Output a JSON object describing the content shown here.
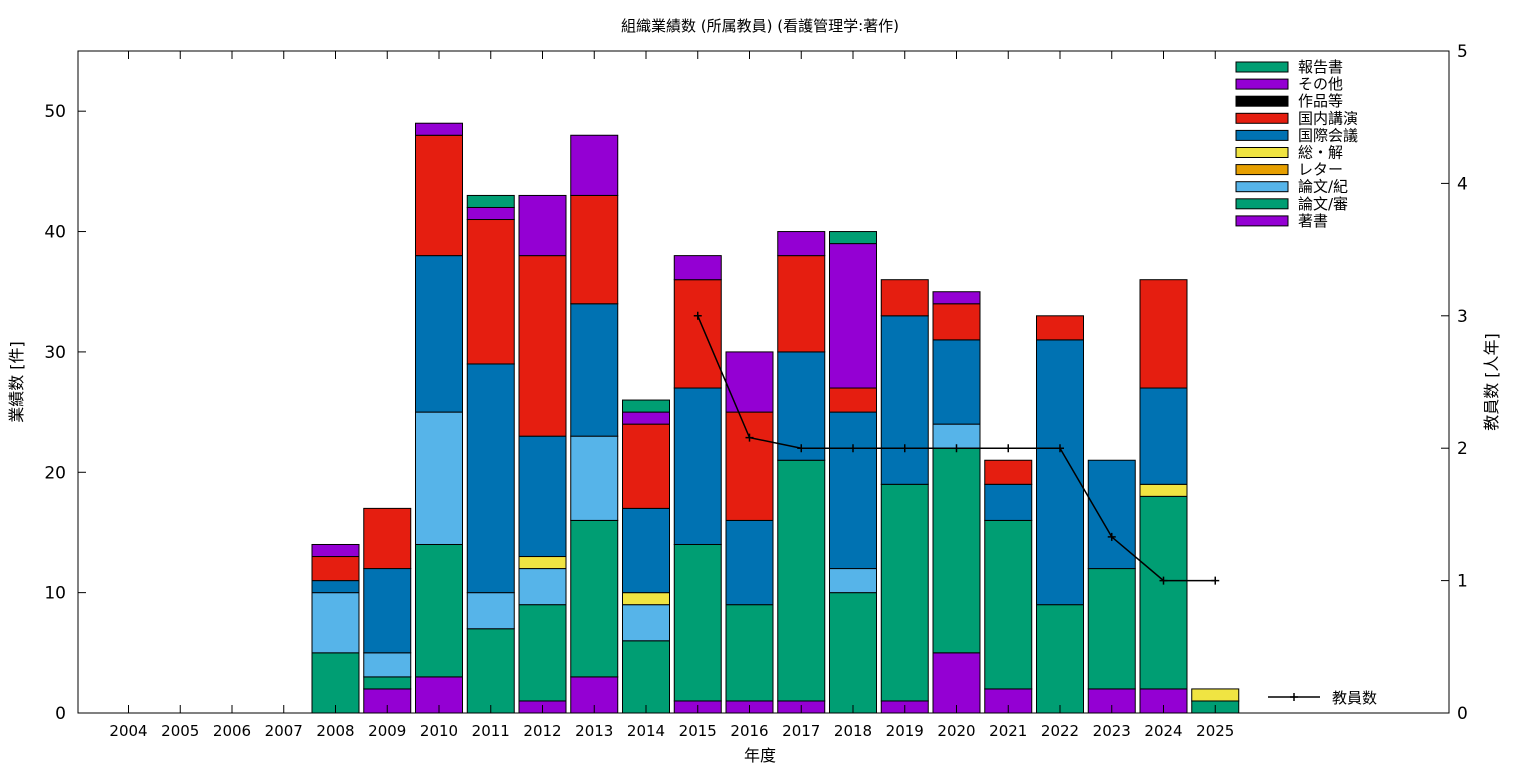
{
  "chart_data": {
    "type": "bar",
    "stacked": true,
    "title": "組織業績数 (所属教員) (看護管理学:著作)",
    "xlabel": "年度",
    "ylabel": "業績数 [件]",
    "y2label": "教員数 [人年]",
    "ylim": [
      0,
      55
    ],
    "y2lim": [
      0,
      5
    ],
    "yticks": [
      0,
      10,
      20,
      30,
      40,
      50
    ],
    "y2ticks": [
      0,
      1,
      2,
      3,
      4,
      5
    ],
    "grid": false,
    "legend_position": "top-right",
    "categories": [
      "2004",
      "2005",
      "2006",
      "2007",
      "2008",
      "2009",
      "2010",
      "2011",
      "2012",
      "2013",
      "2014",
      "2015",
      "2016",
      "2017",
      "2018",
      "2019",
      "2020",
      "2021",
      "2022",
      "2023",
      "2024",
      "2025"
    ],
    "series": [
      {
        "name": "著書",
        "color": "#9400d3",
        "values": [
          0,
          0,
          0,
          0,
          0,
          2,
          3,
          0,
          1,
          3,
          0,
          1,
          1,
          1,
          0,
          1,
          5,
          2,
          0,
          2,
          2,
          0
        ]
      },
      {
        "name": "論文/審",
        "color": "#009e73",
        "values": [
          0,
          0,
          0,
          0,
          5,
          1,
          11,
          7,
          8,
          13,
          6,
          13,
          8,
          20,
          10,
          18,
          17,
          14,
          9,
          10,
          16,
          1
        ]
      },
      {
        "name": "論文/紀",
        "color": "#56b4e9",
        "values": [
          0,
          0,
          0,
          0,
          5,
          2,
          11,
          3,
          3,
          7,
          3,
          0,
          0,
          0,
          2,
          0,
          2,
          0,
          0,
          0,
          0,
          0
        ]
      },
      {
        "name": "レター",
        "color": "#e69f00",
        "values": [
          0,
          0,
          0,
          0,
          0,
          0,
          0,
          0,
          0,
          0,
          0,
          0,
          0,
          0,
          0,
          0,
          0,
          0,
          0,
          0,
          0,
          0
        ]
      },
      {
        "name": "総・解",
        "color": "#f0e442",
        "values": [
          0,
          0,
          0,
          0,
          0,
          0,
          0,
          0,
          1,
          0,
          1,
          0,
          0,
          0,
          0,
          0,
          0,
          0,
          0,
          0,
          1,
          1
        ]
      },
      {
        "name": "国際会議",
        "color": "#0072b2",
        "values": [
          0,
          0,
          0,
          0,
          1,
          7,
          13,
          19,
          10,
          11,
          7,
          13,
          7,
          9,
          13,
          14,
          7,
          3,
          22,
          9,
          8,
          0
        ]
      },
      {
        "name": "国内講演",
        "color": "#e51e10",
        "values": [
          0,
          0,
          0,
          0,
          2,
          5,
          10,
          12,
          15,
          9,
          7,
          9,
          9,
          8,
          2,
          3,
          3,
          2,
          2,
          0,
          9,
          0
        ]
      },
      {
        "name": "作品等",
        "color": "#000000",
        "values": [
          0,
          0,
          0,
          0,
          0,
          0,
          0,
          0,
          0,
          0,
          0,
          0,
          0,
          0,
          0,
          0,
          0,
          0,
          0,
          0,
          0,
          0
        ]
      },
      {
        "name": "その他",
        "color": "#9400d3",
        "values": [
          0,
          0,
          0,
          0,
          1,
          0,
          1,
          1,
          5,
          5,
          1,
          2,
          5,
          2,
          12,
          0,
          1,
          0,
          0,
          0,
          0,
          0
        ]
      },
      {
        "name": "報告書",
        "color": "#009e73",
        "values": [
          0,
          0,
          0,
          0,
          0,
          0,
          0,
          1,
          0,
          0,
          1,
          0,
          0,
          0,
          1,
          0,
          0,
          0,
          0,
          0,
          0,
          0
        ]
      }
    ],
    "line_series": {
      "name": "教員数",
      "axis": "y2",
      "color": "#000000",
      "x": [
        "2015",
        "2016",
        "2017",
        "2018",
        "2019",
        "2020",
        "2021",
        "2022",
        "2023",
        "2024",
        "2025"
      ],
      "values": [
        3.0,
        2.08,
        2.0,
        2.0,
        2.0,
        2.0,
        2.0,
        2.0,
        1.33,
        1.0,
        1.0
      ]
    }
  }
}
